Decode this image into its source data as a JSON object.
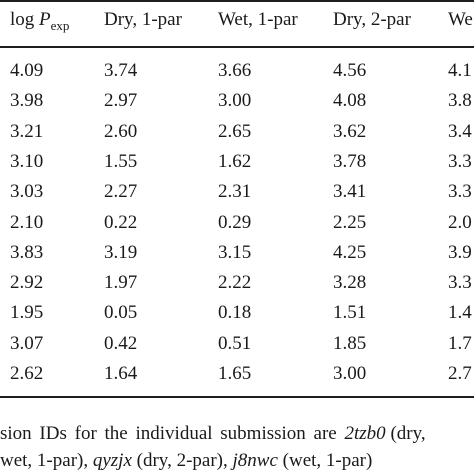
{
  "table": {
    "headers": [
      {
        "main": "log ",
        "var": "P",
        "sub": "exp"
      },
      {
        "main": "Dry, 1-par"
      },
      {
        "main": "Wet, 1-par"
      },
      {
        "main": "Dry, 2-par"
      },
      {
        "main": "We"
      }
    ],
    "rows": [
      [
        "4.09",
        "3.74",
        "3.66",
        "4.56",
        "4.1"
      ],
      [
        "3.98",
        "2.97",
        "3.00",
        "4.08",
        "3.8"
      ],
      [
        "3.21",
        "2.60",
        "2.65",
        "3.62",
        "3.4"
      ],
      [
        "3.10",
        "1.55",
        "1.62",
        "3.78",
        "3.3"
      ],
      [
        "3.03",
        "2.27",
        "2.31",
        "3.41",
        "3.3"
      ],
      [
        "2.10",
        "0.22",
        "0.29",
        "2.25",
        "2.0"
      ],
      [
        "3.83",
        "3.19",
        "3.15",
        "4.25",
        "3.9"
      ],
      [
        "2.92",
        "1.97",
        "2.22",
        "3.28",
        "3.3"
      ],
      [
        "1.95",
        "0.05",
        "0.18",
        "1.51",
        "1.4"
      ],
      [
        "3.07",
        "0.42",
        "0.51",
        "1.85",
        "1.7"
      ],
      [
        "2.62",
        "1.64",
        "1.65",
        "3.00",
        "2.7"
      ]
    ]
  },
  "footnote": {
    "line1_a": "sion IDs for the individual submission are ",
    "line1_id": "2tzb0",
    "line1_b": " (dry,",
    "line2_a": "wet, 1-par), ",
    "line2_id1": "qyzjx",
    "line2_b": " (dry, 2-par), ",
    "line2_id2": "j8nwc",
    "line2_c": " (wet, 1-par)"
  }
}
